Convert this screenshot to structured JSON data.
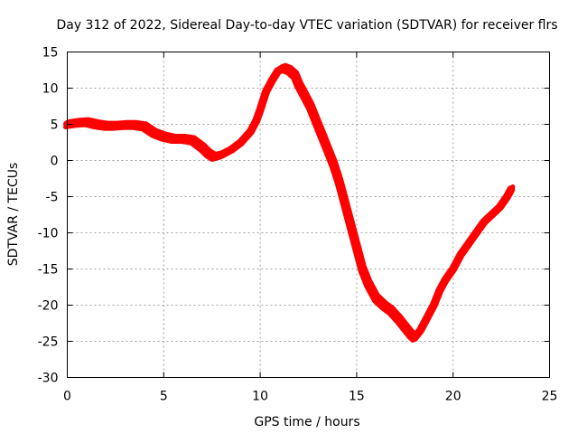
{
  "chart_data": {
    "type": "line",
    "title": "Day 312 of 2022, Sidereal Day-to-day VTEC variation (SDTVAR) for receiver flrs",
    "xlabel": "GPS time / hours",
    "ylabel": "SDTVAR / TECUs",
    "xlim": [
      0,
      25
    ],
    "ylim": [
      -30,
      15
    ],
    "x_ticks": [
      0,
      5,
      10,
      15,
      20,
      25
    ],
    "y_ticks": [
      -30,
      -25,
      -20,
      -15,
      -10,
      -5,
      0,
      5,
      10,
      15
    ],
    "grid": true,
    "series_color": "#ff0000",
    "series": [
      {
        "name": "SDTVAR",
        "x": [
          0.0,
          0.5,
          1.0,
          1.5,
          2.0,
          2.5,
          3.0,
          3.5,
          4.0,
          4.5,
          5.0,
          5.5,
          6.0,
          6.5,
          7.0,
          7.3,
          7.6,
          8.0,
          8.5,
          9.0,
          9.5,
          9.8,
          10.0,
          10.3,
          10.6,
          10.9,
          11.2,
          11.5,
          11.8,
          12.0,
          12.3,
          12.6,
          12.9,
          13.2,
          13.5,
          13.8,
          14.1,
          14.4,
          14.7,
          15.0,
          15.3,
          15.6,
          16.0,
          16.4,
          16.8,
          17.2,
          17.5,
          17.8,
          18.0,
          18.3,
          18.6,
          19.0,
          19.3,
          19.6,
          20.0,
          20.4,
          20.8,
          21.2,
          21.6,
          22.0,
          22.4,
          22.8,
          23.0
        ],
        "values": [
          5.0,
          5.2,
          5.3,
          5.0,
          4.8,
          4.8,
          4.9,
          4.9,
          4.7,
          3.8,
          3.3,
          3.0,
          3.0,
          2.8,
          1.8,
          1.0,
          0.5,
          0.8,
          1.5,
          2.5,
          4.0,
          5.5,
          7.0,
          9.5,
          11.0,
          12.3,
          12.8,
          12.5,
          11.8,
          10.5,
          9.0,
          7.5,
          5.5,
          3.5,
          1.5,
          -0.5,
          -3.0,
          -6.0,
          -9.0,
          -12.0,
          -15.0,
          -17.0,
          -19.0,
          -20.0,
          -20.8,
          -22.0,
          -23.0,
          -24.0,
          -24.5,
          -23.5,
          -22.0,
          -20.0,
          -18.0,
          -16.5,
          -15.0,
          -13.0,
          -11.5,
          -10.0,
          -8.5,
          -7.5,
          -6.5,
          -5.0,
          -4.0
        ]
      }
    ]
  }
}
